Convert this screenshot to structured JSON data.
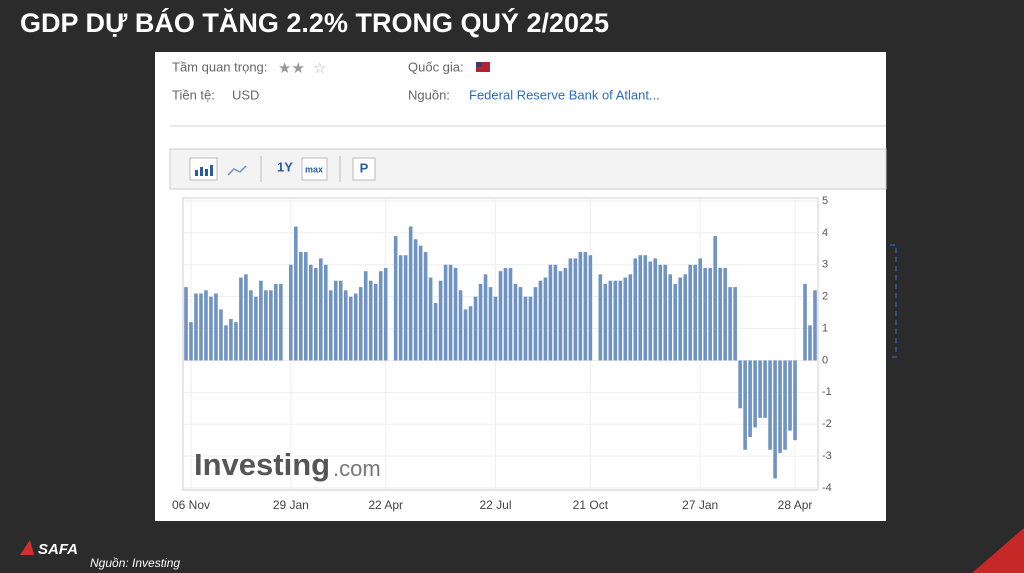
{
  "header": {
    "title": "GDP DỰ BÁO TĂNG 2.2% TRONG QUÝ 2/2025"
  },
  "info": {
    "importance_label": "Tầm quan trọng:",
    "country_label": "Quốc gia:",
    "currency_label": "Tiền tệ:",
    "currency": "USD",
    "source_label": "Nguồn:",
    "source": "Federal Reserve Bank of Atlant..."
  },
  "toolbar": {
    "range_1y": "1Y",
    "range_max": "max",
    "p": "P"
  },
  "watermark": {
    "brand": "Investing",
    "suffix": ".com"
  },
  "footer": {
    "logo": "SAFA",
    "source": "Nguồn: Investing"
  },
  "chart_data": {
    "type": "bar",
    "color": "#6f93c2",
    "values": [
      2.3,
      1.2,
      2.1,
      2.1,
      2.2,
      2.0,
      2.1,
      1.6,
      1.1,
      1.3,
      1.2,
      2.6,
      2.7,
      2.2,
      2.0,
      2.5,
      2.2,
      2.2,
      2.4,
      2.4,
      null,
      3.0,
      4.2,
      3.4,
      3.4,
      3.0,
      2.9,
      3.2,
      3.0,
      2.2,
      2.5,
      2.5,
      2.2,
      2.0,
      2.1,
      2.3,
      2.8,
      2.5,
      2.4,
      2.8,
      2.9,
      null,
      3.9,
      3.3,
      3.3,
      4.2,
      3.8,
      3.6,
      3.4,
      2.6,
      1.8,
      2.5,
      3.0,
      3.0,
      2.9,
      2.2,
      1.6,
      1.7,
      2.0,
      2.4,
      2.7,
      2.3,
      2.0,
      2.8,
      2.9,
      2.9,
      2.4,
      2.3,
      2.0,
      2.0,
      2.3,
      2.5,
      2.6,
      3.0,
      3.0,
      2.8,
      2.9,
      3.2,
      3.2,
      3.4,
      3.4,
      3.3,
      null,
      2.7,
      2.4,
      2.5,
      2.5,
      2.5,
      2.6,
      2.7,
      3.2,
      3.3,
      3.3,
      3.1,
      3.2,
      3.0,
      3.0,
      2.7,
      2.4,
      2.6,
      2.7,
      3.0,
      3.0,
      3.2,
      2.9,
      2.9,
      3.9,
      2.9,
      2.9,
      2.3,
      2.3,
      -1.5,
      -2.8,
      -2.4,
      -2.1,
      -1.8,
      -1.8,
      -2.8,
      -3.7,
      -2.9,
      -2.8,
      -2.2,
      -2.5,
      null,
      2.4,
      1.1,
      2.2
    ],
    "xlim": [
      0,
      126
    ],
    "xticks": [
      {
        "value": 1,
        "label": "06 Nov"
      },
      {
        "value": 21,
        "label": "29 Jan"
      },
      {
        "value": 40,
        "label": "22 Apr"
      },
      {
        "value": 62,
        "label": "22 Jul"
      },
      {
        "value": 81,
        "label": "21 Oct"
      },
      {
        "value": 103,
        "label": "27 Jan"
      },
      {
        "value": 122,
        "label": "28 Apr"
      }
    ],
    "ylim": [
      -4,
      5
    ],
    "yticks": [
      5,
      4,
      3,
      2,
      1,
      0,
      -1,
      -2,
      -3,
      -4
    ],
    "grid": true
  }
}
